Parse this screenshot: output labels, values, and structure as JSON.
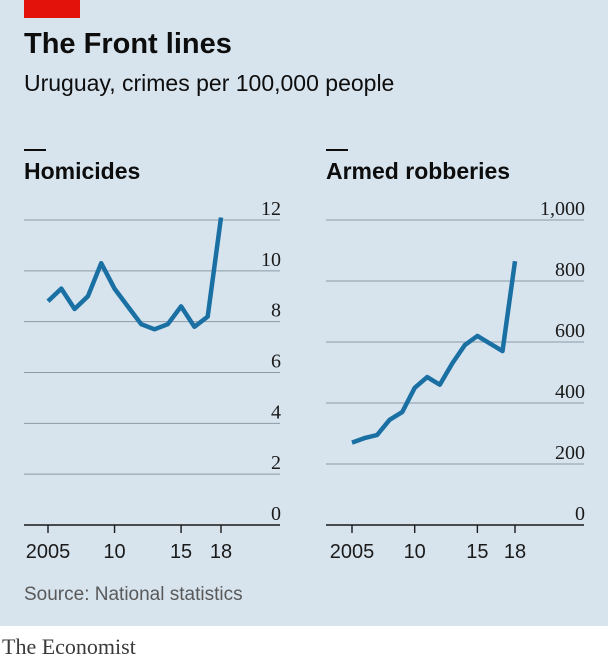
{
  "header": {
    "title": "The Front lines",
    "subtitle": "Uruguay, crimes per 100,000 people"
  },
  "footer": {
    "source": "Source: National statistics",
    "brand": "The Economist"
  },
  "colors": {
    "background": "#d7e4ee",
    "line": "#1a6fa3",
    "grid": "#8a9aa6",
    "accent": "#e3120b"
  },
  "chart_data": [
    {
      "type": "line",
      "title": "Homicides",
      "x": [
        2005,
        2006,
        2007,
        2008,
        2009,
        2010,
        2011,
        2012,
        2013,
        2014,
        2015,
        2016,
        2017,
        2018
      ],
      "values": [
        8.8,
        9.3,
        8.5,
        9.0,
        10.3,
        9.3,
        8.6,
        7.9,
        7.7,
        7.9,
        8.6,
        7.8,
        8.2,
        12.1
      ],
      "yticks": [
        0,
        2,
        4,
        6,
        8,
        10,
        12
      ],
      "ytick_labels": [
        "0",
        "2",
        "4",
        "6",
        "8",
        "10",
        "12"
      ],
      "xticks": [
        2005,
        2010,
        2015,
        2018
      ],
      "xtick_labels": [
        "2005",
        "10",
        "15",
        "18"
      ],
      "ylim": [
        0,
        12
      ],
      "grid": true,
      "y_axis_side": "right"
    },
    {
      "type": "line",
      "title": "Armed robberies",
      "x": [
        2005,
        2006,
        2007,
        2008,
        2009,
        2010,
        2011,
        2012,
        2013,
        2014,
        2015,
        2016,
        2017,
        2018
      ],
      "values": [
        270,
        285,
        295,
        345,
        370,
        450,
        485,
        460,
        530,
        590,
        620,
        595,
        570,
        865
      ],
      "yticks": [
        0,
        200,
        400,
        600,
        800,
        1000
      ],
      "ytick_labels": [
        "0",
        "200",
        "400",
        "600",
        "800",
        "1,000"
      ],
      "xticks": [
        2005,
        2010,
        2015,
        2018
      ],
      "xtick_labels": [
        "2005",
        "10",
        "15",
        "18"
      ],
      "ylim": [
        0,
        1000
      ],
      "grid": true,
      "y_axis_side": "right"
    }
  ]
}
